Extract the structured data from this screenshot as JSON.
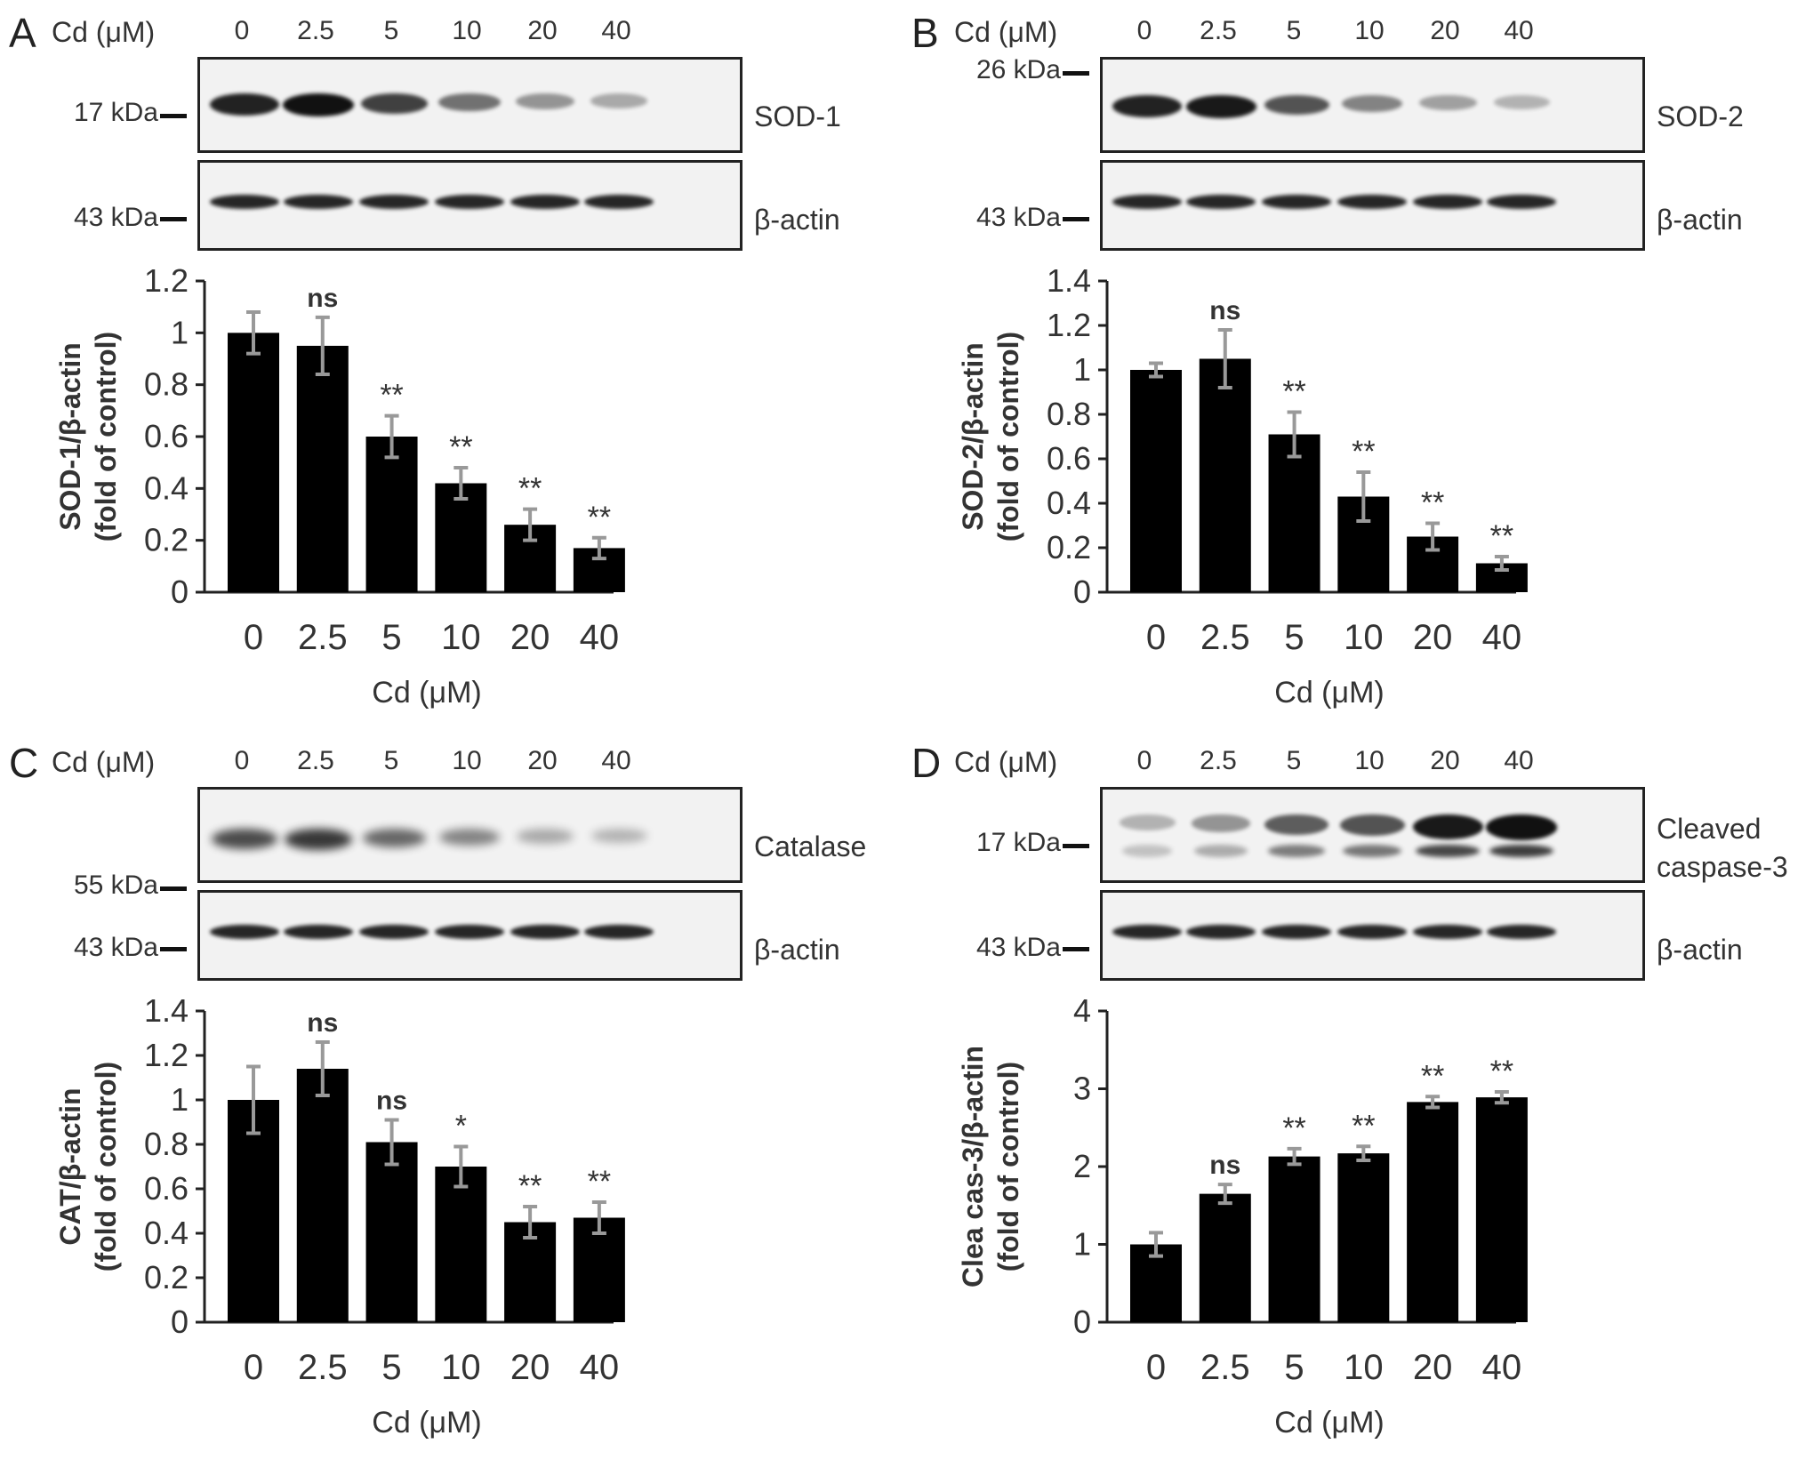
{
  "lane_header": "Cd (μM)",
  "lanes": [
    "0",
    "2.5",
    "5",
    "10",
    "20",
    "40"
  ],
  "panels": [
    {
      "letter": "A",
      "target": "SOD-1",
      "target_kda": "17 kDa",
      "actin_label": "β-actin",
      "actin_kda": "43 kDa",
      "band_intensity": [
        0.9,
        1.0,
        0.75,
        0.5,
        0.3,
        0.2
      ]
    },
    {
      "letter": "B",
      "target": "SOD-2",
      "target_kda": "26 kDa",
      "actin_label": "β-actin",
      "actin_kda": "43 kDa",
      "band_intensity": [
        0.9,
        0.95,
        0.65,
        0.4,
        0.25,
        0.15
      ]
    },
    {
      "letter": "C",
      "target": "Catalase",
      "target_kda": "55 kDa",
      "actin_label": "β-actin",
      "actin_kda": "43 kDa",
      "band_intensity": [
        0.7,
        0.8,
        0.55,
        0.4,
        0.2,
        0.15
      ]
    },
    {
      "letter": "D",
      "target": "Cleaved caspase-3",
      "target_kda": "17 kDa",
      "actin_label": "β-actin",
      "actin_kda": "43 kDa",
      "band_intensity": [
        0.15,
        0.3,
        0.6,
        0.65,
        0.95,
        1.0
      ]
    }
  ],
  "chart_data": [
    {
      "type": "bar",
      "categories": [
        "0",
        "2.5",
        "5",
        "10",
        "20",
        "40"
      ],
      "values": [
        1.0,
        0.95,
        0.6,
        0.42,
        0.26,
        0.17
      ],
      "errors": [
        0.08,
        0.11,
        0.08,
        0.06,
        0.06,
        0.04
      ],
      "significance": [
        "",
        "ns",
        "**",
        "**",
        "**",
        "**"
      ],
      "xlabel": "Cd (μM)",
      "ylabel": [
        "SOD-1/β-actin",
        "(fold of control)"
      ],
      "ylim": [
        0,
        1.2
      ],
      "yticks": [
        "0",
        "0.2",
        "0.4",
        "0.6",
        "0.8",
        "1",
        "1.2"
      ]
    },
    {
      "type": "bar",
      "categories": [
        "0",
        "2.5",
        "5",
        "10",
        "20",
        "40"
      ],
      "values": [
        1.0,
        1.05,
        0.71,
        0.43,
        0.25,
        0.13
      ],
      "errors": [
        0.03,
        0.13,
        0.1,
        0.11,
        0.06,
        0.03
      ],
      "significance": [
        "",
        "ns",
        "**",
        "**",
        "**",
        "**"
      ],
      "xlabel": "Cd (μM)",
      "ylabel": [
        "SOD-2/β-actin",
        "(fold of control)"
      ],
      "ylim": [
        0,
        1.4
      ],
      "yticks": [
        "0",
        "0.2",
        "0.4",
        "0.6",
        "0.8",
        "1",
        "1.2",
        "1.4"
      ]
    },
    {
      "type": "bar",
      "categories": [
        "0",
        "2.5",
        "5",
        "10",
        "20",
        "40"
      ],
      "values": [
        1.0,
        1.14,
        0.81,
        0.7,
        0.45,
        0.47
      ],
      "errors": [
        0.15,
        0.12,
        0.1,
        0.09,
        0.07,
        0.07
      ],
      "significance": [
        "",
        "ns",
        "ns",
        "*",
        "**",
        "**"
      ],
      "xlabel": "Cd (μM)",
      "ylabel": [
        "CAT/β-actin",
        "(fold of control)"
      ],
      "ylim": [
        0,
        1.4
      ],
      "yticks": [
        "0",
        "0.2",
        "0.4",
        "0.6",
        "0.8",
        "1",
        "1.2",
        "1.4"
      ]
    },
    {
      "type": "bar",
      "categories": [
        "0",
        "2.5",
        "5",
        "10",
        "20",
        "40"
      ],
      "values": [
        1.0,
        1.65,
        2.13,
        2.17,
        2.83,
        2.89
      ],
      "errors": [
        0.15,
        0.12,
        0.1,
        0.09,
        0.07,
        0.07
      ],
      "significance": [
        "",
        "ns",
        "**",
        "**",
        "**",
        "**"
      ],
      "xlabel": "Cd (μM)",
      "ylabel": [
        "Clea cas-3/β-actin",
        "(fold of control)"
      ],
      "ylim": [
        0,
        4
      ],
      "yticks": [
        "0",
        "1",
        "2",
        "3",
        "4"
      ]
    }
  ]
}
